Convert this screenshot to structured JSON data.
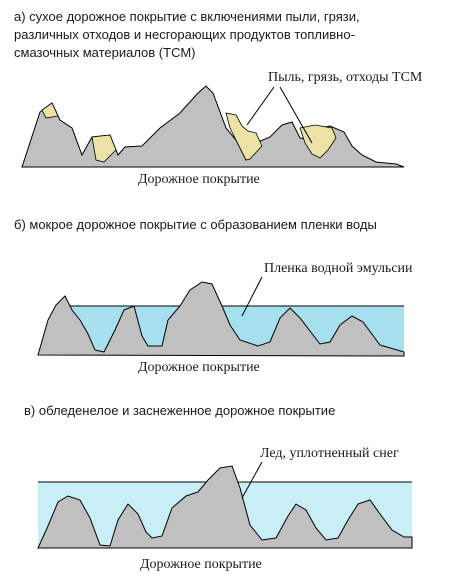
{
  "panel_a": {
    "caption_lines": [
      "а) сухое дорожное покрытие с включениями пыли, грязи,",
      "различных отходов и несгорающих продуктов топливно-",
      "смазочных материалов (ТСМ)"
    ],
    "callout": "Пыль, грязь, отходы ТСМ",
    "surface_label": "Дорожное покрытие"
  },
  "panel_b": {
    "caption": "б) мокрое дорожное покрытие с образованием пленки воды",
    "callout": "Пленка водной эмульсии",
    "surface_label": "Дорожное покрытие"
  },
  "panel_c": {
    "caption": "в) обледенелое и заснеженное дорожное покрытие",
    "callout": "Лед, уплотненный снег",
    "surface_label": "Дорожное покрытие"
  },
  "colors": {
    "pavement": "#c0c0c0",
    "dirt": "#ece2a6",
    "water": "#a6dfee",
    "ice": "#c8eef6",
    "outline": "#000000"
  }
}
